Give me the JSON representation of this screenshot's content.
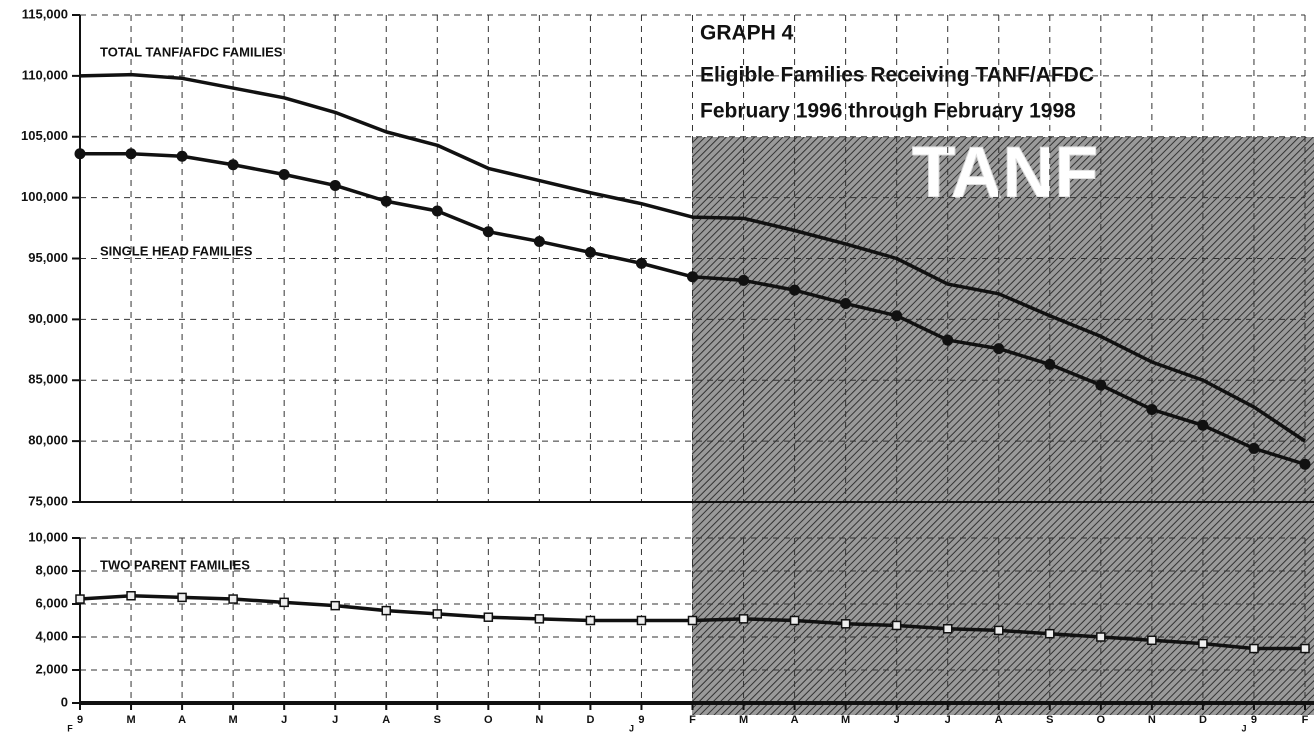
{
  "chart_data": [
    {
      "type": "line",
      "title": "GRAPH 4",
      "subtitle": [
        "Eligible Families Receiving TANF/AFDC",
        "February 1996 through February 1998"
      ],
      "annotation": "TANF",
      "ylim": [
        75000,
        115000
      ],
      "yticks": [
        {
          "value": 75000,
          "label": "75,000"
        },
        {
          "value": 80000,
          "label": "80,000"
        },
        {
          "value": 85000,
          "label": "85,000"
        },
        {
          "value": 90000,
          "label": "90,000"
        },
        {
          "value": 95000,
          "label": "95,000"
        },
        {
          "value": 100000,
          "label": "100,000"
        },
        {
          "value": 105000,
          "label": "105,000"
        },
        {
          "value": 110000,
          "label": "110,000"
        },
        {
          "value": 115000,
          "label": "115,000"
        }
      ],
      "grid": true,
      "series": [
        {
          "name": "TOTAL TANF/AFDC FAMILIES",
          "color": "#111111",
          "marker": "none",
          "values": [
            110000,
            110100,
            109800,
            109000,
            108200,
            107000,
            105400,
            104300,
            102400,
            101400,
            100400,
            99500,
            98400,
            98300,
            97300,
            96200,
            95000,
            92900,
            92100,
            90300,
            88600,
            86500,
            85000,
            82800,
            80000
          ]
        },
        {
          "name": "SINGLE HEAD FAMILIES",
          "color": "#111111",
          "marker": "circle",
          "values": [
            103600,
            103600,
            103400,
            102700,
            101900,
            101000,
            99700,
            98900,
            97200,
            96400,
            95500,
            94600,
            93500,
            93200,
            92400,
            91300,
            90300,
            88300,
            87600,
            86300,
            84600,
            82600,
            81300,
            79400,
            78100
          ]
        }
      ]
    },
    {
      "type": "line",
      "categories": [
        "9",
        "M",
        "A",
        "M",
        "J",
        "J",
        "A",
        "S",
        "O",
        "N",
        "D",
        "9",
        "F",
        "M",
        "A",
        "M",
        "J",
        "J",
        "A",
        "S",
        "O",
        "N",
        "D",
        "9",
        "F"
      ],
      "category_sublabels": [
        "F",
        null,
        null,
        null,
        null,
        null,
        null,
        null,
        null,
        null,
        null,
        "J",
        null,
        null,
        null,
        null,
        null,
        null,
        null,
        null,
        null,
        null,
        null,
        "J",
        null
      ],
      "ylim": [
        0,
        10000
      ],
      "yticks": [
        0,
        {
          "value": 2000,
          "label": "2,000"
        },
        {
          "value": 4000,
          "label": "4,000"
        },
        {
          "value": 6000,
          "label": "6,000"
        },
        {
          "value": 8000,
          "label": "8,000"
        },
        {
          "value": 10000,
          "label": "10,000"
        }
      ],
      "grid": true,
      "series": [
        {
          "name": "TWO PARENT FAMILIES",
          "color": "#111111",
          "marker": "square",
          "values": [
            6300,
            6500,
            6400,
            6300,
            6100,
            5900,
            5600,
            5400,
            5200,
            5100,
            5000,
            5000,
            5000,
            5100,
            5000,
            4800,
            4700,
            4500,
            4400,
            4200,
            4000,
            3800,
            3600,
            3300,
            3300
          ]
        }
      ]
    }
  ]
}
